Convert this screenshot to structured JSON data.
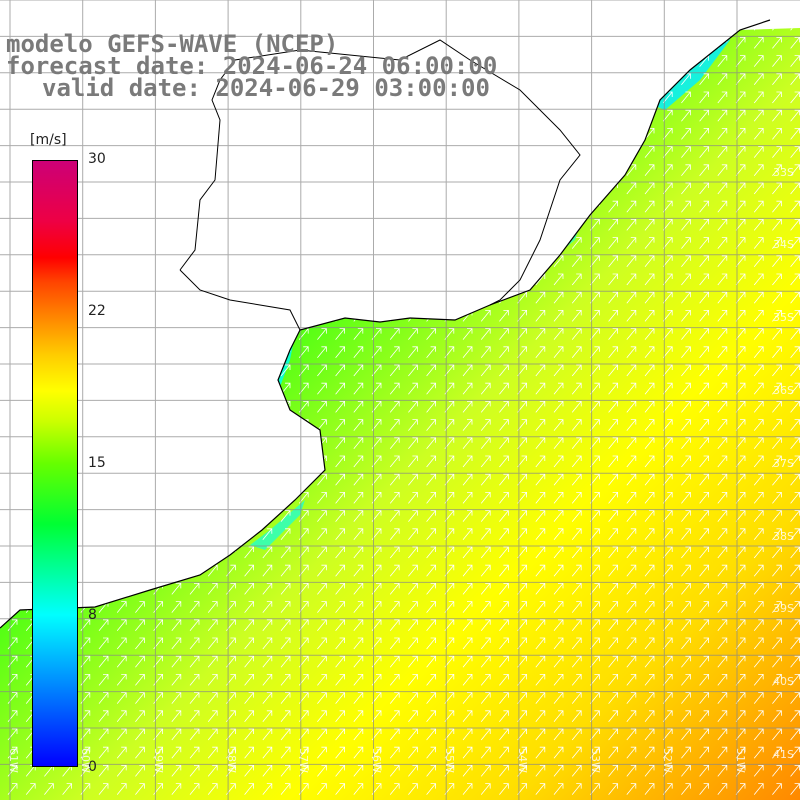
{
  "title": {
    "line1": "modelo GEFS-WAVE (NCEP)",
    "line2": "forecast date: 2024-06-24 06:00:00",
    "line3": "valid date: 2024-06-29 03:00:00"
  },
  "colorbar": {
    "unit": "[m/s]",
    "ticks": [
      "30",
      "22",
      "15",
      "8",
      "0"
    ],
    "min": 0,
    "max": 30
  },
  "lat_labels": [
    "33S",
    "34S",
    "35S",
    "36S",
    "37S",
    "38S",
    "39S",
    "40S",
    "41S"
  ],
  "lon_labels": [
    "61W",
    "60W",
    "59W",
    "58W",
    "57W",
    "56W",
    "55W",
    "54W",
    "53W",
    "52W",
    "51W"
  ],
  "colors": {
    "land": "#ffffff",
    "grid": "#888888",
    "coast": "#000000",
    "arrows": "#ffffff",
    "title": "#7a7a7a"
  },
  "field": {
    "variable": "wind speed",
    "wind_direction": "toward northeast"
  }
}
